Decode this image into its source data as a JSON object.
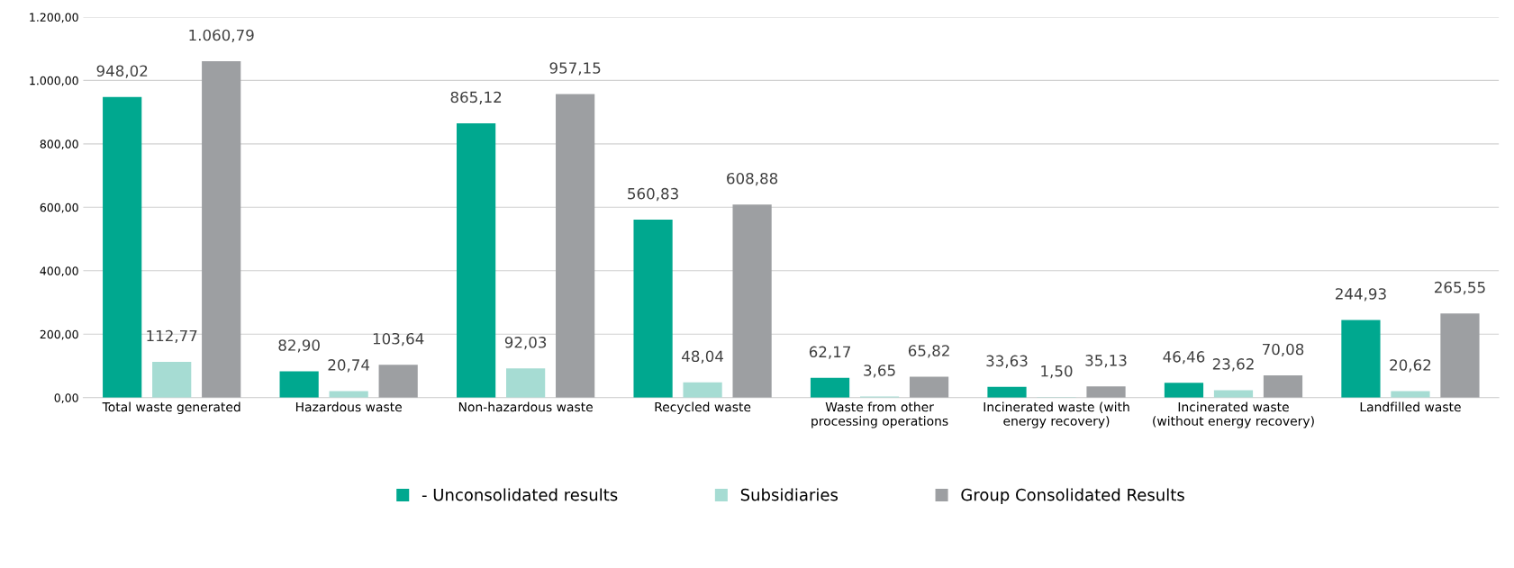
{
  "chart_data": {
    "type": "bar",
    "categories": [
      "Total waste generated",
      "Hazardous waste",
      "Non-hazardous waste",
      "Recycled waste",
      "Waste from other\nprocessing operations",
      "Incinerated waste (with\nenergy recovery)",
      "Incinerated waste\n(without energy recovery)",
      "Landfilled waste"
    ],
    "series": [
      {
        "name": "- Unconsolidated results",
        "color": "#00a88f",
        "values": [
          948.02,
          82.9,
          865.12,
          560.83,
          62.17,
          33.63,
          46.46,
          244.93
        ],
        "value_labels": [
          "948,02",
          "82,90",
          "865,12",
          "560,83",
          "62,17",
          "33,63",
          "46,46",
          "244,93"
        ]
      },
      {
        "name": "Subsidiaries",
        "color": "#a6dcd3",
        "values": [
          112.77,
          20.74,
          92.03,
          48.04,
          3.65,
          1.5,
          23.62,
          20.62
        ],
        "value_labels": [
          "112,77",
          "20,74",
          "92,03",
          "48,04",
          "3,65",
          "1,50",
          "23,62",
          "20,62"
        ]
      },
      {
        "name": "Group Consolidated Results",
        "color": "#9d9fa2",
        "values": [
          1060.79,
          103.64,
          957.15,
          608.88,
          65.82,
          35.13,
          70.08,
          265.55
        ],
        "value_labels": [
          "1.060,79",
          "103,64",
          "957,15",
          "608,88",
          "65,82",
          "35,13",
          "70,08",
          "265,55"
        ]
      }
    ],
    "ylim": [
      0,
      1200
    ],
    "yticks": [
      {
        "value": 0,
        "label": "0,00"
      },
      {
        "value": 200,
        "label": "200,00"
      },
      {
        "value": 400,
        "label": "400,00"
      },
      {
        "value": 600,
        "label": "600,00"
      },
      {
        "value": 800,
        "label": "800,00"
      },
      {
        "value": 1000,
        "label": "1.000,00"
      },
      {
        "value": 1200,
        "label": "1.200,00"
      }
    ],
    "grid": "y",
    "legend": "bottom"
  }
}
